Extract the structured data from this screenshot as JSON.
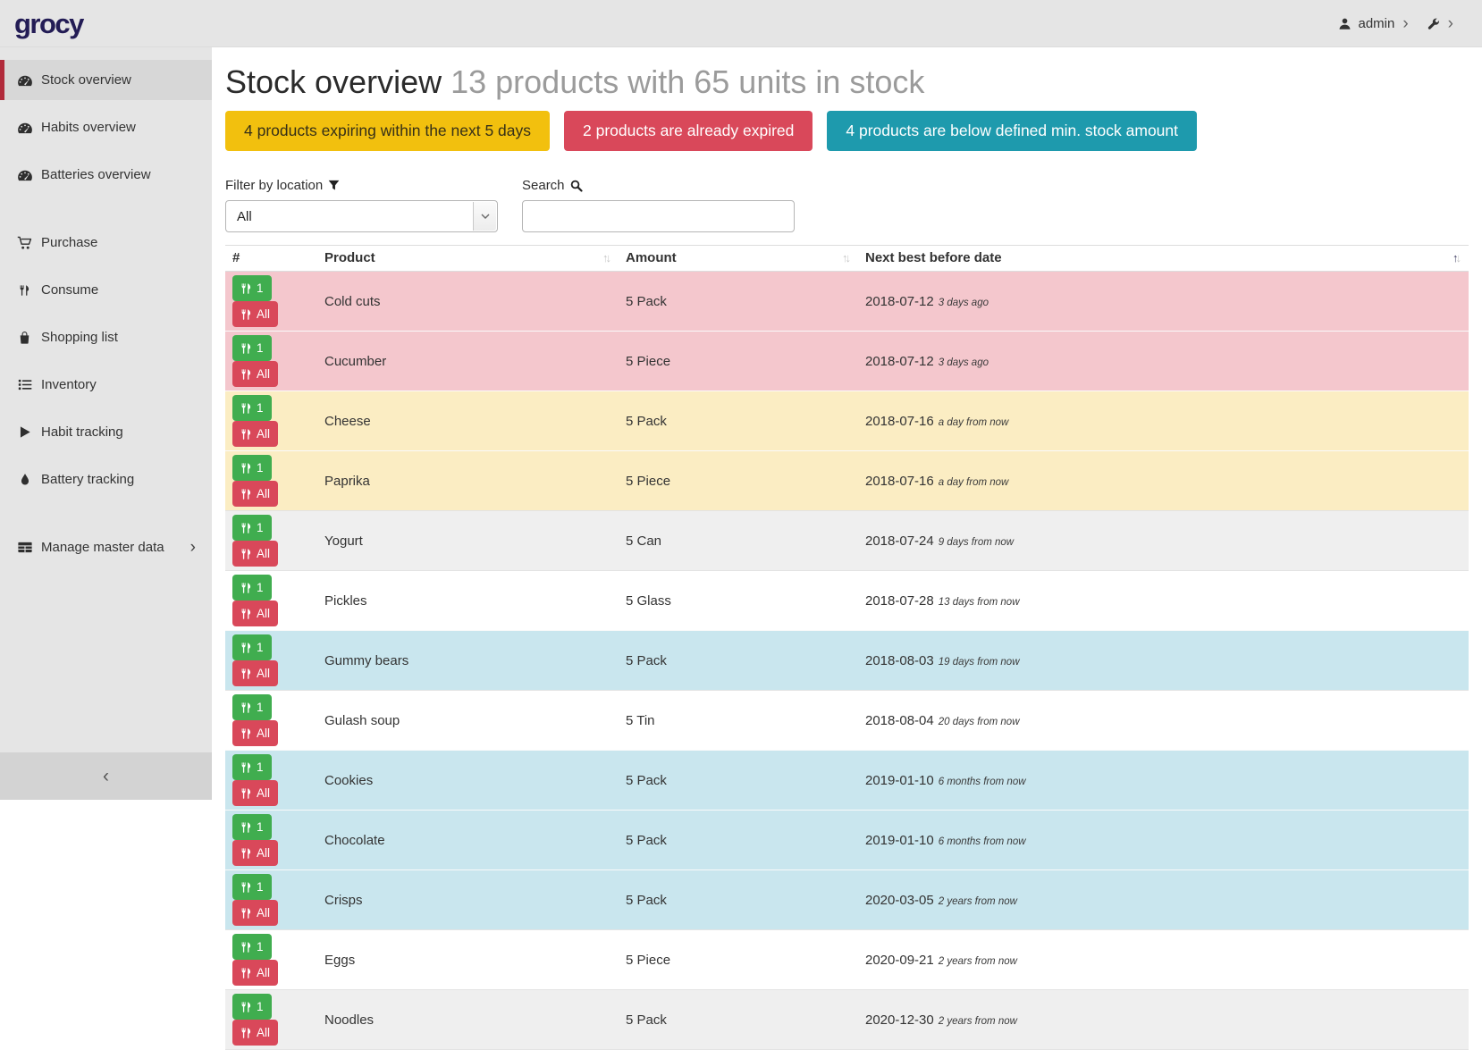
{
  "app": {
    "logo_text": "grocy"
  },
  "topbar": {
    "user_label": "admin",
    "user_chevron": "›",
    "settings_chevron": "›"
  },
  "sidebar": {
    "collapse_label": "‹",
    "items": [
      {
        "label": "Stock overview",
        "icon": "tachometer",
        "active": true
      },
      {
        "label": "Habits overview",
        "icon": "tachometer"
      },
      {
        "label": "Batteries overview",
        "icon": "tachometer"
      },
      {
        "label": "Purchase",
        "icon": "cart",
        "gap_before": true
      },
      {
        "label": "Consume",
        "icon": "utensils"
      },
      {
        "label": "Shopping list",
        "icon": "shopping-bag"
      },
      {
        "label": "Inventory",
        "icon": "list"
      },
      {
        "label": "Habit tracking",
        "icon": "play"
      },
      {
        "label": "Battery tracking",
        "icon": "tint"
      },
      {
        "label": "Manage master data",
        "icon": "table",
        "chevron": "›",
        "gap_before": true
      }
    ]
  },
  "page": {
    "title": "Stock overview",
    "subtitle": "13 products with 65 units in stock",
    "badges": [
      {
        "label": "4 products expiring within the next 5 days",
        "type": "warning",
        "color": "#f2c00e"
      },
      {
        "label": "2 products are already expired",
        "type": "danger",
        "color": "#d9485a"
      },
      {
        "label": "4 products are below defined min. stock amount",
        "type": "info",
        "color": "#1e9aad"
      }
    ],
    "filter": {
      "label": "Filter by location",
      "value": "All"
    },
    "search": {
      "label": "Search",
      "value": ""
    }
  },
  "table": {
    "columns": [
      {
        "label": "#",
        "sortable": false
      },
      {
        "label": "Product",
        "sortable": true
      },
      {
        "label": "Amount",
        "sortable": true
      },
      {
        "label": "Next best before date",
        "sortable": true,
        "sorted": "asc"
      }
    ],
    "sort_up": "↑",
    "sort_down": "↓",
    "row_actions": [
      {
        "label": "1",
        "type": "success"
      },
      {
        "label": "All",
        "type": "danger"
      }
    ],
    "action_colors": {
      "success": "#40ad4f",
      "danger": "#d9485a"
    },
    "status_colors": {
      "danger": "#f4c7cd",
      "warning": "#fbedc3",
      "info": "#c9e6ee"
    },
    "rows": [
      {
        "product": "Cold cuts",
        "amount": "5 Pack",
        "best_before": "2018-07-12",
        "timeago": "3 days ago",
        "status": "danger"
      },
      {
        "product": "Cucumber",
        "amount": "5 Piece",
        "best_before": "2018-07-12",
        "timeago": "3 days ago",
        "status": "danger"
      },
      {
        "product": "Cheese",
        "amount": "5 Pack",
        "best_before": "2018-07-16",
        "timeago": "a day from now",
        "status": "warning"
      },
      {
        "product": "Paprika",
        "amount": "5 Piece",
        "best_before": "2018-07-16",
        "timeago": "a day from now",
        "status": "warning"
      },
      {
        "product": "Yogurt",
        "amount": "5 Can",
        "best_before": "2018-07-24",
        "timeago": "9 days from now",
        "status": "none"
      },
      {
        "product": "Pickles",
        "amount": "5 Glass",
        "best_before": "2018-07-28",
        "timeago": "13 days from now",
        "status": "none"
      },
      {
        "product": "Gummy bears",
        "amount": "5 Pack",
        "best_before": "2018-08-03",
        "timeago": "19 days from now",
        "status": "info"
      },
      {
        "product": "Gulash soup",
        "amount": "5 Tin",
        "best_before": "2018-08-04",
        "timeago": "20 days from now",
        "status": "none"
      },
      {
        "product": "Cookies",
        "amount": "5 Pack",
        "best_before": "2019-01-10",
        "timeago": "6 months from now",
        "status": "info"
      },
      {
        "product": "Chocolate",
        "amount": "5 Pack",
        "best_before": "2019-01-10",
        "timeago": "6 months from now",
        "status": "info"
      },
      {
        "product": "Crisps",
        "amount": "5 Pack",
        "best_before": "2020-03-05",
        "timeago": "2 years from now",
        "status": "info"
      },
      {
        "product": "Eggs",
        "amount": "5 Piece",
        "best_before": "2020-09-21",
        "timeago": "2 years from now",
        "status": "none"
      },
      {
        "product": "Noodles",
        "amount": "5 Pack",
        "best_before": "2020-12-30",
        "timeago": "2 years from now",
        "status": "none"
      }
    ]
  }
}
